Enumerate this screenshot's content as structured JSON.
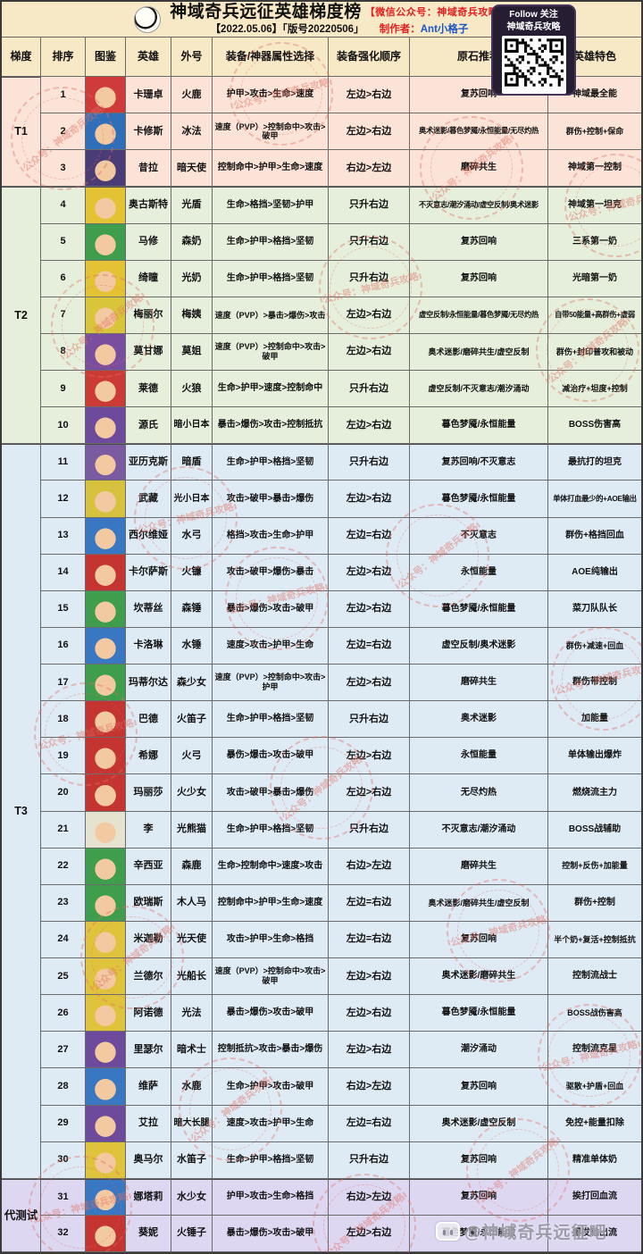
{
  "header": {
    "title": "神域奇兵远征英雄梯度榜",
    "title_tag": "【微信公众号：神域奇兵攻略】",
    "date_line": "【2022.05.06】「版号20220506」",
    "author_label": "制作者：",
    "author_name": "Ant小格子",
    "qr_line1": "Follow 关注",
    "qr_line2": "神域奇兵攻略"
  },
  "columns": [
    "梯度",
    "排序",
    "图鉴",
    "英雄",
    "外号",
    "装备/神器属性选择",
    "装备强化顺序",
    "原石推荐",
    "英雄特色"
  ],
  "tiers": [
    {
      "label": "T1",
      "start": 1,
      "span": 3,
      "color": "#fbe3d7"
    },
    {
      "label": "T2",
      "start": 4,
      "span": 7,
      "color": "#e5efdb"
    },
    {
      "label": "T3",
      "start": 11,
      "span": 20,
      "color": "#deeaf4"
    },
    {
      "label": "代测试",
      "start": 31,
      "span": 2,
      "color": "#ded7f2"
    }
  ],
  "rows": [
    {
      "rank": "1",
      "hero": "卡珊卓",
      "nickname": "火鹿",
      "stats": "护甲>攻击>生命>速度",
      "enhance": "左边>右边",
      "gems": "复苏回响",
      "feature": "神域最全能",
      "portrait_color": "#cf3b3b"
    },
    {
      "rank": "2",
      "hero": "卡修斯",
      "nickname": "冰法",
      "stats": "速度（PVP）>控制命中>攻击>破甲",
      "enhance": "左边>右边",
      "gems": "奥术迷影/暮色梦魇/永恒能量/无尽灼热",
      "feature": "群伤+控制+保命",
      "portrait_color": "#2f6fba"
    },
    {
      "rank": "3",
      "hero": "昔拉",
      "nickname": "暗天使",
      "stats": "控制命中>护甲>生命>速度",
      "enhance": "右边>左边",
      "gems": "磨碎共生",
      "feature": "神域第一控制",
      "portrait_color": "#4a3c75"
    },
    {
      "rank": "4",
      "hero": "奥古斯特",
      "nickname": "光盾",
      "stats": "生命>格挡>坚韧>护甲",
      "enhance": "只升右边",
      "gems": "不灭意志/潮汐涌动/虚空反制/奥术迷影",
      "feature": "神域第一坦克",
      "portrait_color": "#e3c233"
    },
    {
      "rank": "5",
      "hero": "马修",
      "nickname": "森奶",
      "stats": "生命>护甲>格挡>坚韧",
      "enhance": "只升右边",
      "gems": "复苏回响",
      "feature": "三系第一奶",
      "portrait_color": "#3f9e4d"
    },
    {
      "rank": "6",
      "hero": "绮瞳",
      "nickname": "光奶",
      "stats": "生命>护甲>格挡>坚韧",
      "enhance": "只升右边",
      "gems": "复苏回响",
      "feature": "光暗第一奶",
      "portrait_color": "#e3c233"
    },
    {
      "rank": "7",
      "hero": "梅丽尔",
      "nickname": "梅姨",
      "stats": "速度（PVP）>暴击>爆伤>攻击",
      "enhance": "左边>右边",
      "gems": "虚空反制/永恒能量/暮色梦魇/无尽灼热",
      "feature": "自带50能量+高群伤+虚弱",
      "portrait_color": "#d9c53a"
    },
    {
      "rank": "8",
      "hero": "莫甘娜",
      "nickname": "莫姐",
      "stats": "速度（PVP）>控制命中>攻击>破甲",
      "enhance": "左边>右边",
      "gems": "奥术迷影/磨碎共生/虚空反制",
      "feature": "群伤+封印普攻和被动",
      "portrait_color": "#7a4e9e"
    },
    {
      "rank": "9",
      "hero": "莱德",
      "nickname": "火狼",
      "stats": "生命>护甲>速度>控制命中",
      "enhance": "只升右边",
      "gems": "虚空反制/不灭意志/潮汐涌动",
      "feature": "减治疗+坦度+控制",
      "portrait_color": "#cc3a35"
    },
    {
      "rank": "10",
      "hero": "源氏",
      "nickname": "暗小日本",
      "stats": "暴击>爆伤>攻击>控制抵抗",
      "enhance": "左边>右边",
      "gems": "暮色梦魇/永恒能量",
      "feature": "BOSS伤害高",
      "portrait_color": "#6d4a9c"
    },
    {
      "rank": "11",
      "hero": "亚历克斯",
      "nickname": "暗盾",
      "stats": "生命>护甲>格挡>坚韧",
      "enhance": "只升右边",
      "gems": "复苏回响/不灭意志",
      "feature": "最抗打的坦克",
      "portrait_color": "#7a5aa0"
    },
    {
      "rank": "12",
      "hero": "武藏",
      "nickname": "光小日本",
      "stats": "攻击>破甲>暴击>爆伤",
      "enhance": "左边>右边",
      "gems": "暮色梦魇/永恒能量",
      "feature": "单体打血最少的+AOE输出",
      "portrait_color": "#d6c23e"
    },
    {
      "rank": "13",
      "hero": "西尔维娅",
      "nickname": "水弓",
      "stats": "格挡>攻击>生命>护甲",
      "enhance": "左边=右边",
      "gems": "不灭意志",
      "feature": "群伤+格挡回血",
      "portrait_color": "#3a77c2"
    },
    {
      "rank": "14",
      "hero": "卡尔萨斯",
      "nickname": "火镰",
      "stats": "攻击>破甲>爆伤>暴击",
      "enhance": "左边>右边",
      "gems": "永恒能量",
      "feature": "AOE纯输出",
      "portrait_color": "#c43430"
    },
    {
      "rank": "15",
      "hero": "坎蒂丝",
      "nickname": "森锤",
      "stats": "暴击>爆伤>攻击>破甲",
      "enhance": "左边>右边",
      "gems": "暮色梦魇/永恒能量",
      "feature": "菜刀队队长",
      "portrait_color": "#3f9e4d"
    },
    {
      "rank": "16",
      "hero": "卡洛琳",
      "nickname": "水锤",
      "stats": "速度>攻击>护甲>生命",
      "enhance": "左边=右边",
      "gems": "虚空反制/奥术迷影",
      "feature": "群伤+减速+回血",
      "portrait_color": "#3a77c2"
    },
    {
      "rank": "17",
      "hero": "玛蒂尔达",
      "nickname": "森少女",
      "stats": "速度（PVP）>控制命中>攻击>护甲",
      "enhance": "左边>右边",
      "gems": "磨碎共生",
      "feature": "群伤带控制",
      "portrait_color": "#3f9e4d"
    },
    {
      "rank": "18",
      "hero": "巴德",
      "nickname": "火笛子",
      "stats": "生命>护甲>格挡>坚韧",
      "enhance": "只升右边",
      "gems": "奥术迷影",
      "feature": "加能量",
      "portrait_color": "#c43430"
    },
    {
      "rank": "19",
      "hero": "希娜",
      "nickname": "火弓",
      "stats": "暴伤>爆击>攻击>破甲",
      "enhance": "左边>右边",
      "gems": "永恒能量",
      "feature": "单体输出爆炸",
      "portrait_color": "#c43430"
    },
    {
      "rank": "20",
      "hero": "玛丽莎",
      "nickname": "火少女",
      "stats": "攻击>破甲>暴击>爆伤",
      "enhance": "左边>右边",
      "gems": "无尽灼热",
      "feature": "燃烧流主力",
      "portrait_color": "#c43430"
    },
    {
      "rank": "21",
      "hero": "李",
      "nickname": "光熊猫",
      "stats": "生命>护甲>格挡>坚韧",
      "enhance": "只升右边",
      "gems": "不灭意志/潮汐涌动",
      "feature": "BOSS战辅助",
      "portrait_color": "#e6e2d0"
    },
    {
      "rank": "22",
      "hero": "辛西亚",
      "nickname": "森鹿",
      "stats": "生命>控制命中>速度>攻击",
      "enhance": "右边>左边",
      "gems": "磨碎共生",
      "feature": "控制+反伤+加能量",
      "portrait_color": "#3f9e4d"
    },
    {
      "rank": "23",
      "hero": "欧瑞斯",
      "nickname": "木人马",
      "stats": "控制命中>护甲>生命>速度",
      "enhance": "左边=右边",
      "gems": "奥术迷影/磨碎共生/虚空反制",
      "feature": "群伤+控制",
      "portrait_color": "#3f9e4d"
    },
    {
      "rank": "24",
      "hero": "米迦勒",
      "nickname": "光天使",
      "stats": "攻击>护甲>生命>格挡",
      "enhance": "左边=右边",
      "gems": "复苏回响",
      "feature": "半个奶+复活+控制抵抗",
      "portrait_color": "#e0c33c"
    },
    {
      "rank": "25",
      "hero": "兰德尔",
      "nickname": "光船长",
      "stats": "速度（PVP）>控制命中>攻击>破甲",
      "enhance": "左边>右边",
      "gems": "奥术迷影/磨碎共生",
      "feature": "控制流战士",
      "portrait_color": "#e0c33c"
    },
    {
      "rank": "26",
      "hero": "阿诺德",
      "nickname": "光法",
      "stats": "暴击>爆伤>攻击>破甲",
      "enhance": "左边>右边",
      "gems": "暮色梦魇/永恒能量",
      "feature": "BOSS战伤害高",
      "portrait_color": "#e0c33c"
    },
    {
      "rank": "27",
      "hero": "里瑟尔",
      "nickname": "暗术士",
      "stats": "控制抵抗>攻击>暴击>爆伤",
      "enhance": "左边>右边",
      "gems": "潮汐涌动",
      "feature": "控制流克星",
      "portrait_color": "#6d4a9c"
    },
    {
      "rank": "28",
      "hero": "维萨",
      "nickname": "水鹿",
      "stats": "生命>护甲>攻击>破甲",
      "enhance": "右边>左边",
      "gems": "复苏回响",
      "feature": "驱散+护盾+回血",
      "portrait_color": "#3a77c2"
    },
    {
      "rank": "29",
      "hero": "艾拉",
      "nickname": "暗大长腿",
      "stats": "速度>攻击>护甲>生命",
      "enhance": "左边=右边",
      "gems": "奥术迷影/虚空反制",
      "feature": "免控+能量扣除",
      "portrait_color": "#6d4a9c"
    },
    {
      "rank": "30",
      "hero": "奥马尔",
      "nickname": "水笛子",
      "stats": "生命>护甲>格挡>坚韧",
      "enhance": "只升右边",
      "gems": "复苏回响",
      "feature": "精准单体奶",
      "portrait_color": "#e0c33c"
    },
    {
      "rank": "31",
      "hero": "娜塔莉",
      "nickname": "水少女",
      "stats": "护甲>攻击>生命>格挡",
      "enhance": "右边>左边",
      "gems": "复苏回响",
      "feature": "挨打回血流",
      "portrait_color": "#3a77c2"
    },
    {
      "rank": "32",
      "hero": "葵妮",
      "nickname": "火锤子",
      "stats": "暴击>爆伤>攻击>破甲",
      "enhance": "左边>右边",
      "gems": "暮色梦魇/永恒能量",
      "feature": "爆发输出流",
      "portrait_color": "#c43430"
    }
  ],
  "watermark": {
    "stamp_text": "公众号：神域奇兵攻略",
    "footer_text": "@神域奇兵远征吧"
  },
  "colors": {
    "header_bg": "#f7e8c6",
    "t1": "#fbe3d7",
    "t2": "#e5efdb",
    "t3": "#deeaf4",
    "test": "#ded7f2",
    "accent_red": "#e01f1f",
    "accent_blue": "#1a56c4"
  }
}
